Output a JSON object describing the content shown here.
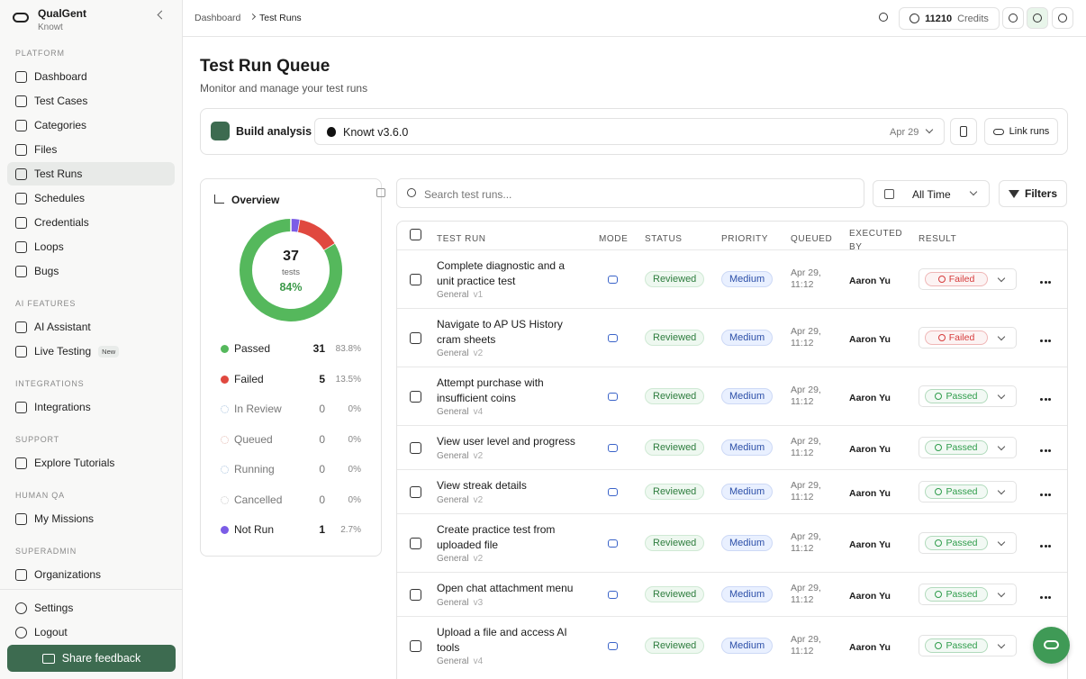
{
  "sidebar": {
    "brand": "QualGent",
    "workspace": "Knowt",
    "new_badge": "New",
    "sections": [
      {
        "title": "PLATFORM",
        "items": [
          "Dashboard",
          "Test Cases",
          "Categories",
          "Files",
          "Test Runs",
          "Schedules",
          "Credentials",
          "Loops",
          "Bugs"
        ]
      },
      {
        "title": "AI FEATURES",
        "items": [
          "AI Assistant",
          "Live Testing"
        ]
      },
      {
        "title": "INTEGRATIONS",
        "items": [
          "Integrations"
        ]
      },
      {
        "title": "SUPPORT",
        "items": [
          "Explore Tutorials"
        ]
      },
      {
        "title": "HUMAN QA",
        "items": [
          "My Missions"
        ]
      },
      {
        "title": "SUPERADMIN",
        "items": [
          "Organizations"
        ]
      }
    ],
    "bottom": [
      "Settings",
      "Logout"
    ],
    "feedback": "Share feedback"
  },
  "topbar": {
    "breadcrumb": [
      "Dashboard",
      "Test Runs"
    ],
    "credits": "11210",
    "credits_label": "Credits"
  },
  "page": {
    "title": "Test Run Queue",
    "subtitle": "Monitor and manage your test runs"
  },
  "build": {
    "label": "Build analysis",
    "app": "Knowt v3.6.0",
    "date": "Apr 29",
    "link": "Link runs"
  },
  "overview": {
    "title": "Overview",
    "total": 37,
    "total_label": "tests",
    "pass_rate": "84%",
    "statuses": [
      {
        "name": "Passed",
        "count": 31,
        "percent": "83.8%",
        "color": "#55b85c"
      },
      {
        "name": "Failed",
        "count": 5,
        "percent": "13.5%",
        "color": "#e0483f"
      },
      {
        "name": "In Review",
        "count": 0,
        "percent": "0%",
        "color": "#a9c3de"
      },
      {
        "name": "Queued",
        "count": 0,
        "percent": "0%",
        "color": "#e3b9b0"
      },
      {
        "name": "Running",
        "count": 0,
        "percent": "0%",
        "color": "#a9c3de"
      },
      {
        "name": "Cancelled",
        "count": 0,
        "percent": "0%",
        "color": "#c8c8c8"
      },
      {
        "name": "Not Run",
        "count": 1,
        "percent": "2.7%",
        "color": "#7b5ce6"
      }
    ]
  },
  "table": {
    "search": "Search test runs...",
    "time": "All Time",
    "filters": "Filters",
    "columns": [
      "TEST RUN",
      "MODE",
      "STATUS",
      "PRIORITY",
      "QUEUED",
      "EXECUTED BY",
      "RESULT"
    ],
    "rows": [
      {
        "name": "Complete diagnostic and a unit practice test",
        "suite": "General",
        "version": "v1",
        "status": "Reviewed",
        "priority": "Medium",
        "queued": "Apr 29, 11:12",
        "executor": "Aaron Yu",
        "result": "Failed",
        "result_color": "#d63b3b"
      },
      {
        "name": "Navigate to AP US History cram sheets",
        "suite": "General",
        "version": "v2",
        "status": "Reviewed",
        "priority": "Medium",
        "queued": "Apr 29, 11:12",
        "executor": "Aaron Yu",
        "result": "Failed",
        "result_color": "#d63b3b"
      },
      {
        "name": "Attempt purchase with insufficient coins",
        "suite": "General",
        "version": "v4",
        "status": "Reviewed",
        "priority": "Medium",
        "queued": "Apr 29, 11:12",
        "executor": "Aaron Yu",
        "result": "Passed",
        "result_color": "#2e9c4a"
      },
      {
        "name": "View user level and progress",
        "suite": "General",
        "version": "v2",
        "status": "Reviewed",
        "priority": "Medium",
        "queued": "Apr 29, 11:12",
        "executor": "Aaron Yu",
        "result": "Passed",
        "result_color": "#2e9c4a"
      },
      {
        "name": "View streak details",
        "suite": "General",
        "version": "v2",
        "status": "Reviewed",
        "priority": "Medium",
        "queued": "Apr 29, 11:12",
        "executor": "Aaron Yu",
        "result": "Passed",
        "result_color": "#2e9c4a"
      },
      {
        "name": "Create practice test from uploaded file",
        "suite": "General",
        "version": "v2",
        "status": "Reviewed",
        "priority": "Medium",
        "queued": "Apr 29, 11:12",
        "executor": "Aaron Yu",
        "result": "Passed",
        "result_color": "#2e9c4a"
      },
      {
        "name": "Open chat attachment menu",
        "suite": "General",
        "version": "v3",
        "status": "Reviewed",
        "priority": "Medium",
        "queued": "Apr 29, 11:12",
        "executor": "Aaron Yu",
        "result": "Passed",
        "result_color": "#2e9c4a"
      },
      {
        "name": "Upload a file and access AI tools",
        "suite": "General",
        "version": "v4",
        "status": "Reviewed",
        "priority": "Medium",
        "queued": "Apr 29, 11:12",
        "executor": "Aaron Yu",
        "result": "Passed",
        "result_color": "#2e9c4a"
      }
    ]
  }
}
